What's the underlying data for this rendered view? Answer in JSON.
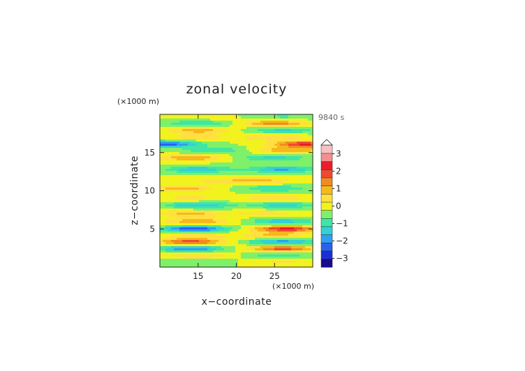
{
  "chart_data": {
    "type": "heatmap",
    "title": "zonal velocity",
    "xlabel": "x−coordinate",
    "ylabel": "z−coordinate",
    "x_units": "(×1000 m)",
    "y_units": "(×1000 m)",
    "time_label": "9840 s",
    "xlim": [
      10,
      30
    ],
    "ylim": [
      0,
      20
    ],
    "x_ticks": [
      "15",
      "20",
      "25"
    ],
    "y_ticks": [
      "5",
      "10",
      "15"
    ],
    "colorbar": {
      "levels": [
        -3.5,
        -3,
        -2.5,
        -2,
        -1.5,
        -1,
        -0.5,
        0,
        0.5,
        1,
        1.5,
        2,
        2.5,
        3,
        3.5
      ],
      "tick_labels": [
        "−3",
        "−2",
        "−1",
        "0",
        "1",
        "2",
        "3"
      ],
      "tick_values": [
        -3,
        -2,
        -1,
        0,
        1,
        2,
        3
      ],
      "colors": [
        "#1a0a8c",
        "#1c2fd6",
        "#2a62f0",
        "#2f9ff2",
        "#34d0d6",
        "#3fe6a4",
        "#7ff06a",
        "#f2f21e",
        "#ffe040",
        "#f7b81c",
        "#f08a22",
        "#ee4a32",
        "#e81e2a",
        "#f29090",
        "#f8c0c0"
      ],
      "extend_max": true
    },
    "bands": [
      {
        "z": 0.7,
        "left": -0.4,
        "right": 0.6,
        "lx": 15.5,
        "rx": 26
      },
      {
        "z": 1.5,
        "left": 1.0,
        "right": -0.8,
        "lx": 15,
        "rx": 25.5
      },
      {
        "z": 2.4,
        "left": -2.0,
        "right": 2.2,
        "lx": 14,
        "rx": 26
      },
      {
        "z": 3.3,
        "left": 2.3,
        "right": -1.8,
        "lx": 14,
        "rx": 26
      },
      {
        "z": 4.1,
        "left": 0.8,
        "right": 1.2,
        "lx": 15,
        "rx": 25
      },
      {
        "z": 5.0,
        "left": -2.5,
        "right": 2.7,
        "lx": 14.5,
        "rx": 26.5
      },
      {
        "z": 6.0,
        "left": 1.5,
        "right": -1.3,
        "lx": 15,
        "rx": 26
      },
      {
        "z": 7.0,
        "left": 1.2,
        "right": 0.8,
        "lx": 14,
        "rx": 24
      },
      {
        "z": 8.1,
        "left": -1.5,
        "right": -1.2,
        "lx": 15,
        "rx": 26
      },
      {
        "z": 9.0,
        "left": 0.7,
        "right": 1.0,
        "lx": 14,
        "rx": 25
      },
      {
        "z": 10.3,
        "left": 1.3,
        "right": -1.0,
        "lx": 13,
        "rx": 25
      },
      {
        "z": 11.3,
        "left": 0.6,
        "right": 1.2,
        "lx": 17,
        "rx": 23
      },
      {
        "z": 12.8,
        "left": -1.4,
        "right": -1.6,
        "lx": 15,
        "rx": 26
      },
      {
        "z": 14.3,
        "left": 1.5,
        "right": -1.2,
        "lx": 14,
        "rx": 25
      },
      {
        "z": 15.3,
        "left": -0.9,
        "right": 1.5,
        "lx": 17,
        "rx": 27
      },
      {
        "z": 16.1,
        "left": -2.2,
        "right": 2.6,
        "lx": 11,
        "rx": 29
      },
      {
        "z": 17.0,
        "left": 0.8,
        "right": 1.0,
        "lx": 15,
        "rx": 25
      },
      {
        "z": 17.9,
        "left": 1.3,
        "right": -1.1,
        "lx": 15,
        "rx": 26
      },
      {
        "z": 18.8,
        "left": -1.0,
        "right": 1.8,
        "lx": 15,
        "rx": 25
      },
      {
        "z": 19.7,
        "left": 0.5,
        "right": -0.6,
        "lx": 15,
        "rx": 26
      }
    ]
  }
}
